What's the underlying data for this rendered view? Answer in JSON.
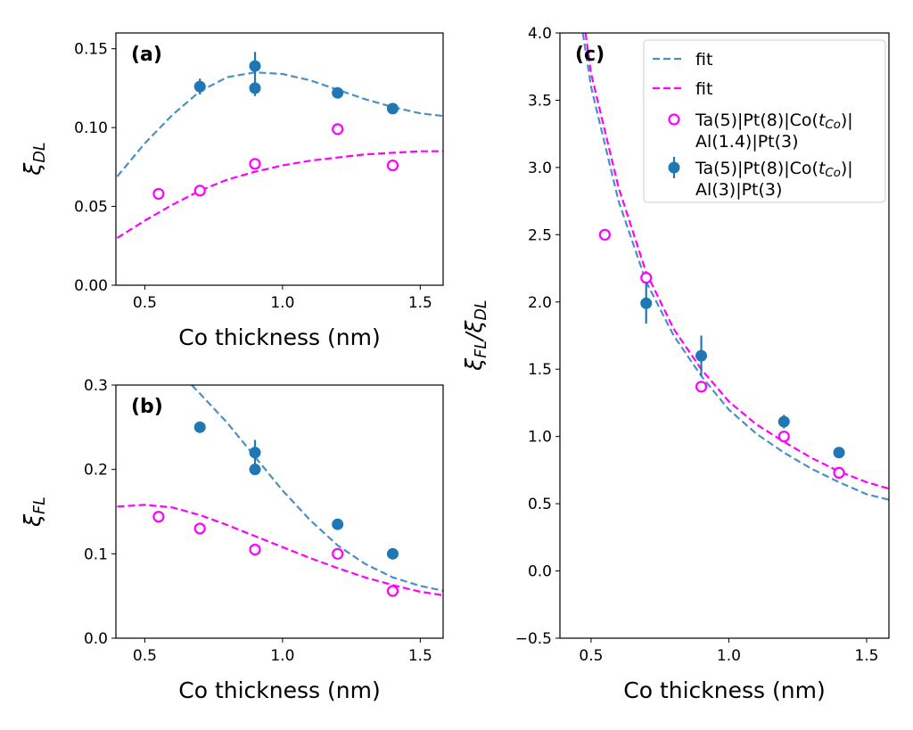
{
  "colors": {
    "blue": "#1f77b4",
    "blue_fit": "#4a90c4",
    "magenta": "#ff00ff"
  },
  "chart_data": [
    {
      "type": "scatter",
      "panel_label": "(a)",
      "xlabel": "Co thickness (nm)",
      "ylabel": [
        {
          "t": "ξ",
          "sub": false
        },
        {
          "t": "DL",
          "sub": true
        }
      ],
      "xlim": [
        0.395,
        1.583
      ],
      "ylim": [
        0,
        0.16
      ],
      "xticks": [
        "0.5",
        "1.0",
        "1.5"
      ],
      "yticks": [
        "0.00",
        "0.05",
        "0.10",
        "0.15"
      ],
      "series": [
        {
          "kind": "fit",
          "color": "blue",
          "x": [
            0.4,
            0.5,
            0.6,
            0.7,
            0.8,
            0.9,
            1.0,
            1.1,
            1.2,
            1.3,
            1.4,
            1.5,
            1.6
          ],
          "y": [
            0.069,
            0.09,
            0.108,
            0.123,
            0.132,
            0.135,
            0.134,
            0.13,
            0.124,
            0.118,
            0.113,
            0.109,
            0.107
          ]
        },
        {
          "kind": "fit",
          "color": "magenta",
          "x": [
            0.4,
            0.5,
            0.6,
            0.7,
            0.8,
            0.9,
            1.0,
            1.1,
            1.2,
            1.3,
            1.4,
            1.5,
            1.6
          ],
          "y": [
            0.03,
            0.041,
            0.051,
            0.06,
            0.067,
            0.072,
            0.076,
            0.079,
            0.081,
            0.083,
            0.084,
            0.085,
            0.085
          ]
        },
        {
          "kind": "open",
          "color": "magenta",
          "x": [
            0.55,
            0.7,
            0.9,
            1.2,
            1.4
          ],
          "y": [
            0.058,
            0.06,
            0.077,
            0.099,
            0.076
          ]
        },
        {
          "kind": "filled",
          "color": "blue",
          "x": [
            0.7,
            0.9,
            0.9,
            1.2,
            1.4
          ],
          "y": [
            0.126,
            0.139,
            0.125,
            0.122,
            0.112
          ],
          "err": [
            0.005,
            0.009,
            0.005,
            0.002,
            0.001
          ]
        }
      ]
    },
    {
      "type": "scatter",
      "panel_label": "(b)",
      "xlabel": "Co thickness (nm)",
      "ylabel": [
        {
          "t": "ξ",
          "sub": false
        },
        {
          "t": "FL",
          "sub": true
        }
      ],
      "xlim": [
        0.395,
        1.583
      ],
      "ylim": [
        0,
        0.3
      ],
      "xticks": [
        "0.5",
        "1.0",
        "1.5"
      ],
      "yticks": [
        "0.0",
        "0.1",
        "0.2",
        "0.3"
      ],
      "series": [
        {
          "kind": "fit",
          "color": "blue",
          "x": [
            0.67,
            0.7,
            0.8,
            0.9,
            1.0,
            1.1,
            1.2,
            1.3,
            1.4,
            1.5,
            1.6
          ],
          "y": [
            0.3,
            0.29,
            0.255,
            0.215,
            0.175,
            0.14,
            0.11,
            0.088,
            0.072,
            0.062,
            0.055
          ]
        },
        {
          "kind": "fit",
          "color": "magenta",
          "x": [
            0.4,
            0.5,
            0.6,
            0.7,
            0.8,
            0.9,
            1.0,
            1.1,
            1.2,
            1.3,
            1.4,
            1.5,
            1.6
          ],
          "y": [
            0.156,
            0.158,
            0.155,
            0.146,
            0.134,
            0.121,
            0.108,
            0.095,
            0.083,
            0.072,
            0.063,
            0.055,
            0.05
          ]
        },
        {
          "kind": "open",
          "color": "magenta",
          "x": [
            0.55,
            0.7,
            0.9,
            1.2,
            1.4
          ],
          "y": [
            0.144,
            0.13,
            0.105,
            0.1,
            0.056
          ]
        },
        {
          "kind": "filled",
          "color": "blue",
          "x": [
            0.7,
            0.9,
            0.9,
            1.2,
            1.4
          ],
          "y": [
            0.25,
            0.22,
            0.2,
            0.135,
            0.1
          ],
          "err": [
            0.003,
            0.015,
            0.006,
            0.003,
            0.002
          ]
        }
      ]
    },
    {
      "type": "scatter",
      "panel_label": "(c)",
      "xlabel": "Co thickness (nm)",
      "ylabel": [
        {
          "t": "ξ",
          "sub": false
        },
        {
          "t": "FL",
          "sub": true
        },
        {
          "t": "/ξ",
          "sub": false
        },
        {
          "t": "DL",
          "sub": true
        }
      ],
      "xlim": [
        0.387,
        1.581
      ],
      "ylim": [
        -0.5,
        4.0
      ],
      "xticks": [
        "0.5",
        "1.0",
        "1.5"
      ],
      "yticks": [
        "−0.5",
        "0.0",
        "0.5",
        "1.0",
        "1.5",
        "2.0",
        "2.5",
        "3.0",
        "3.5",
        "4.0"
      ],
      "legend": {
        "position": "lower-right",
        "entries": [
          {
            "kind": "fit",
            "color": "blue",
            "label": [
              {
                "t": "fit",
                "sub": false
              }
            ]
          },
          {
            "kind": "fit",
            "color": "magenta",
            "label": [
              {
                "t": "fit",
                "sub": false
              }
            ]
          },
          {
            "kind": "open",
            "color": "magenta",
            "label": [
              {
                "t": "Ta(5)|Pt(8)|Co(",
                "sub": false
              },
              {
                "t": "t",
                "sub": false,
                "it": true
              },
              {
                "t": "Co",
                "sub": true,
                "it": true
              },
              {
                "t": ")|Al(1.4)|Pt(3)",
                "sub": false
              }
            ]
          },
          {
            "kind": "filled",
            "color": "blue",
            "label": [
              {
                "t": "Ta(5)|Pt(8)|Co(",
                "sub": false
              },
              {
                "t": "t",
                "sub": false,
                "it": true
              },
              {
                "t": "Co",
                "sub": true,
                "it": true
              },
              {
                "t": ")|Al(3)|Pt(3)",
                "sub": false
              }
            ]
          }
        ]
      },
      "series": [
        {
          "kind": "fit",
          "color": "blue",
          "x": [
            0.47,
            0.5,
            0.6,
            0.7,
            0.8,
            0.9,
            1.0,
            1.1,
            1.2,
            1.3,
            1.4,
            1.5,
            1.6
          ],
          "y": [
            4.0,
            3.6,
            2.75,
            2.15,
            1.75,
            1.45,
            1.2,
            1.02,
            0.88,
            0.76,
            0.66,
            0.57,
            0.52
          ]
        },
        {
          "kind": "fit",
          "color": "magenta",
          "x": [
            0.48,
            0.5,
            0.6,
            0.7,
            0.8,
            0.9,
            1.0,
            1.1,
            1.2,
            1.3,
            1.4,
            1.5,
            1.6
          ],
          "y": [
            4.0,
            3.7,
            2.85,
            2.22,
            1.8,
            1.5,
            1.26,
            1.09,
            0.96,
            0.84,
            0.74,
            0.66,
            0.6
          ]
        },
        {
          "kind": "open",
          "color": "magenta",
          "x": [
            0.55,
            0.7,
            0.9,
            1.2,
            1.4
          ],
          "y": [
            2.5,
            2.18,
            1.37,
            1.0,
            0.73
          ]
        },
        {
          "kind": "filled",
          "color": "blue",
          "x": [
            0.7,
            0.9,
            1.2,
            1.4
          ],
          "y": [
            1.99,
            1.6,
            1.11,
            0.88
          ],
          "err": [
            0.15,
            0.15,
            0.05,
            0.02
          ]
        }
      ]
    }
  ]
}
